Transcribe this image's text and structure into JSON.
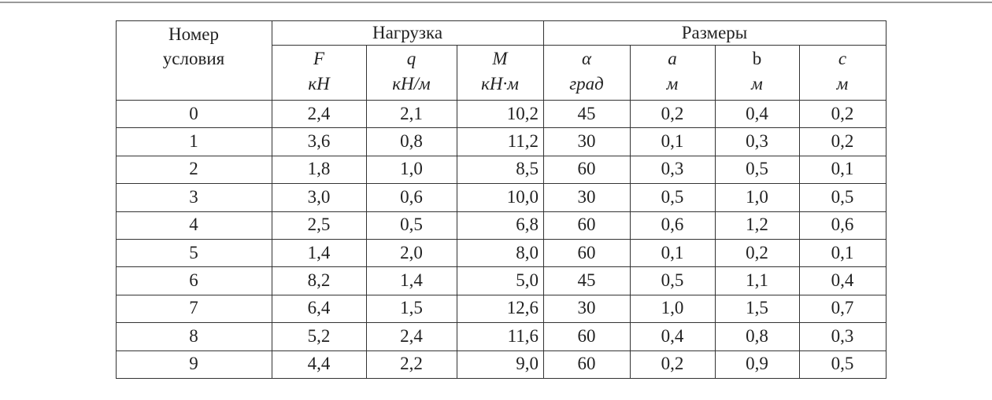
{
  "table": {
    "header": {
      "number": "Номер условия",
      "load": "Нагрузка",
      "sizes": "Размеры",
      "symbols": [
        "F",
        "q",
        "M",
        "α",
        "a",
        "b",
        "c"
      ],
      "units": [
        "кН",
        "кН/м",
        "кН·м",
        "град",
        "м",
        "м",
        "м"
      ]
    },
    "rows": [
      [
        "0",
        "2,4",
        "2,1",
        "10,2",
        "45",
        "0,2",
        "0,4",
        "0,2"
      ],
      [
        "1",
        "3,6",
        "0,8",
        "11,2",
        "30",
        "0,1",
        "0,3",
        "0,2"
      ],
      [
        "2",
        "1,8",
        "1,0",
        "8,5",
        "60",
        "0,3",
        "0,5",
        "0,1"
      ],
      [
        "3",
        "3,0",
        "0,6",
        "10,0",
        "30",
        "0,5",
        "1,0",
        "0,5"
      ],
      [
        "4",
        "2,5",
        "0,5",
        "6,8",
        "60",
        "0,6",
        "1,2",
        "0,6"
      ],
      [
        "5",
        "1,4",
        "2,0",
        "8,0",
        "60",
        "0,1",
        "0,2",
        "0,1"
      ],
      [
        "6",
        "8,2",
        "1,4",
        "5,0",
        "45",
        "0,5",
        "1,1",
        "0,4"
      ],
      [
        "7",
        "6,4",
        "1,5",
        "12,6",
        "30",
        "1,0",
        "1,5",
        "0,7"
      ],
      [
        "8",
        "5,2",
        "2,4",
        "11,6",
        "60",
        "0,4",
        "0,8",
        "0,3"
      ],
      [
        "9",
        "4,4",
        "2,2",
        "9,0",
        "60",
        "0,2",
        "0,9",
        "0,5"
      ]
    ]
  }
}
